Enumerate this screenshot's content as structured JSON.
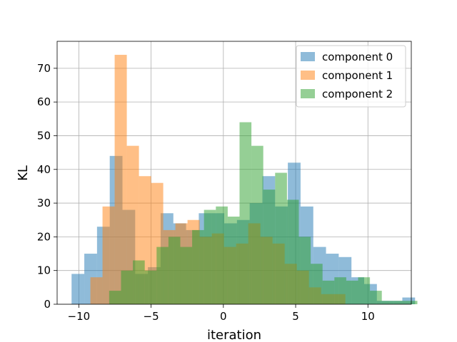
{
  "chart_data": {
    "type": "bar",
    "subtype": "histogram",
    "xlabel": "iteration",
    "ylabel": "KL",
    "xlim": [
      -11.5,
      13.0
    ],
    "ylim": [
      0,
      78
    ],
    "xticks": [
      -10,
      -5,
      0,
      5,
      10
    ],
    "yticks": [
      0,
      10,
      20,
      30,
      40,
      50,
      60,
      70
    ],
    "xtick_labels": [
      "−10",
      "−5",
      "0",
      "5",
      "10"
    ],
    "ytick_labels": [
      "0",
      "10",
      "20",
      "30",
      "40",
      "50",
      "60",
      "70"
    ],
    "grid": true,
    "legend_position": "top-right",
    "alpha": 0.5,
    "series": [
      {
        "name": "component 0",
        "color": "#1f77b4",
        "bin_start": -10.5,
        "bin_width": 0.88,
        "counts": [
          9,
          15,
          23,
          44,
          28,
          9,
          11,
          27,
          24,
          22,
          27,
          27,
          24,
          25,
          30,
          38,
          29,
          42,
          29,
          17,
          15,
          14,
          8,
          6,
          1,
          1,
          2
        ]
      },
      {
        "name": "component 1",
        "color": "#ff7f0e",
        "bin_start": -9.2,
        "bin_width": 0.84,
        "counts": [
          8,
          29,
          74,
          47,
          38,
          36,
          22,
          24,
          25,
          20,
          21,
          17,
          18,
          24,
          20,
          18,
          12,
          10,
          5,
          3,
          3
        ]
      },
      {
        "name": "component 2",
        "color": "#2ca02c",
        "bin_start": -7.9,
        "bin_width": 0.82,
        "counts": [
          4,
          10,
          13,
          10,
          17,
          20,
          17,
          22,
          28,
          29,
          26,
          54,
          47,
          34,
          39,
          31,
          20,
          12,
          7,
          8,
          7,
          8,
          4,
          1,
          1,
          1
        ]
      }
    ]
  }
}
